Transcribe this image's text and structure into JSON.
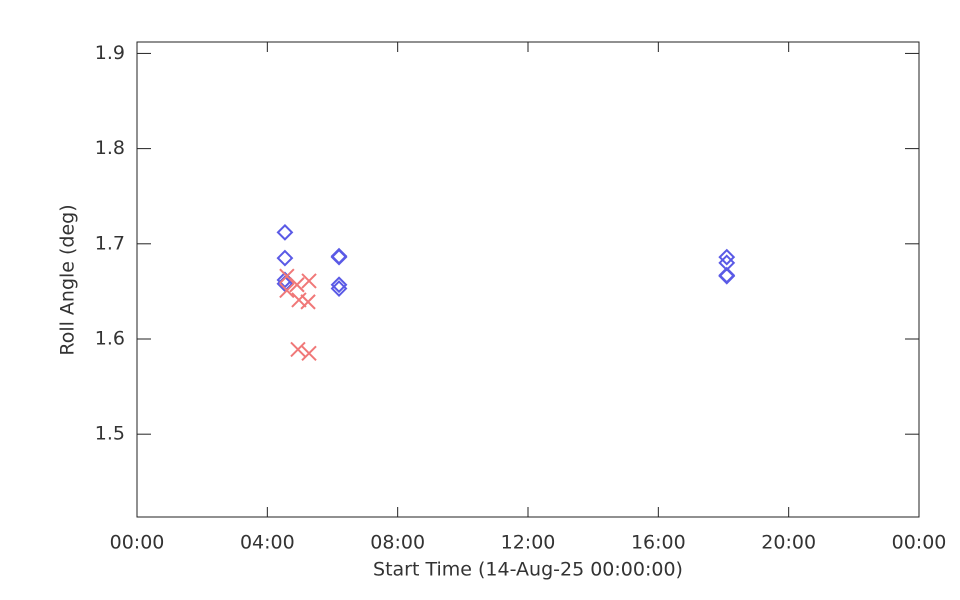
{
  "chart_data": {
    "type": "scatter",
    "xlabel": "Start Time (14-Aug-25 00:00:00)",
    "ylabel": "Roll Angle (deg)",
    "xlim": [
      0,
      24
    ],
    "xticks": [
      {
        "value": 0,
        "label": "00:00"
      },
      {
        "value": 4,
        "label": "04:00"
      },
      {
        "value": 8,
        "label": "08:00"
      },
      {
        "value": 12,
        "label": "12:00"
      },
      {
        "value": 16,
        "label": "16:00"
      },
      {
        "value": 20,
        "label": "20:00"
      },
      {
        "value": 24,
        "label": "00:00"
      }
    ],
    "ylim": [
      1.413,
      1.912
    ],
    "yticks": [
      1.5,
      1.6,
      1.7,
      1.8,
      1.9
    ],
    "series": [
      {
        "color": "#5a5ae6",
        "marker": "diamond",
        "x": [
          4.54,
          4.54,
          4.54,
          4.54,
          6.2,
          6.2,
          6.2,
          6.2,
          18.1,
          18.1,
          18.1,
          18.1
        ],
        "values": [
          1.712,
          1.685,
          1.662,
          1.658,
          1.687,
          1.686,
          1.657,
          1.653,
          1.686,
          1.68,
          1.667,
          1.666
        ]
      },
      {
        "color": "#f07878",
        "marker": "x",
        "x": [
          4.6,
          4.6,
          4.91,
          4.97,
          5.25,
          5.28,
          4.94,
          5.28
        ],
        "values": [
          1.666,
          1.651,
          1.657,
          1.641,
          1.639,
          1.661,
          1.589,
          1.585
        ]
      }
    ]
  }
}
